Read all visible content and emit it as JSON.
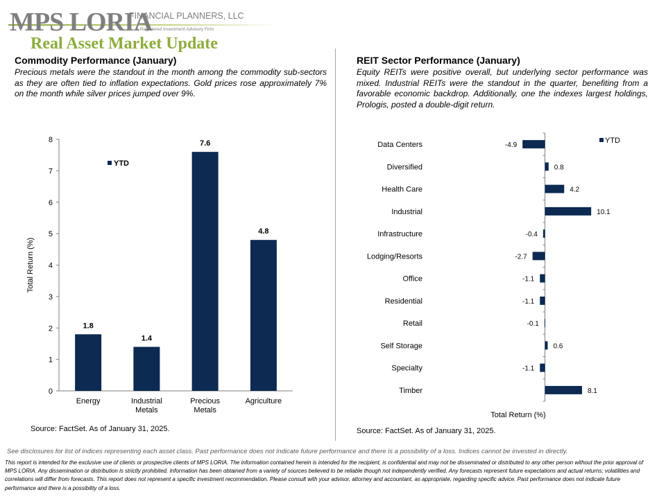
{
  "logo": {
    "wordmark": "MPS LORIA",
    "subtitle": "FINANCIAL PLANNERS, LLC",
    "tagline": "A Registered Investment Advisory Firm"
  },
  "page_title": "Real Asset Market Update",
  "left": {
    "title": "Commodity  Performance (January)",
    "description": "Precious metals were  the standout in the month among  the commodity sub-sectors as they are often tied to inflation expectations. Gold prices rose approximately  7% on the month while silver prices jumped over 9%.",
    "source": "Source: FactSet. As of January 31, 2025."
  },
  "right": {
    "title": "REIT Sector Performance (January)",
    "description": "Equity REITs were  positive overall,  but underlying  sector performance was mixed. Industrial REITs were  the standout in the quarter,  benefiting from a favorable economic backdrop. Additionally,  one  the indexes largest holdings,  Prologis, posted a double-digit return.",
    "source": "Source: FactSet. As of January 31, 2025."
  },
  "disclaimer": "See disclosures for list of indices representing each asset class. Past performance does not indicate future performance and there is a possibility of a loss. Indices cannot be invested in directly.",
  "footer": "This report is intended for the exclusive use of clients or prospective clients of MPS LORIA. The information contained herein is intended for the recipient, is confidential and may not be disseminated or distributed to any other person without the prior approval of MPS LORIA. Any dissemination or distribution is strictly prohibited. Information has been obtained from a variety of sources believed to be reliable though not independently verified. Any forecasts represent future expectations and actual returns; volatilities and correlations will differ from forecasts. This report does not represent a specific investment recommendation. Please consult with your advisor, attorney and accountant, as appropriate, regarding specific advice. Past performance does not indicate future performance and there is a possibility of a loss.",
  "colors": {
    "bar": "#0c2a52",
    "title_green": "#8dac3c",
    "divider": "#a6a6a6"
  },
  "chart_data": [
    {
      "type": "bar",
      "orientation": "vertical",
      "categories": [
        "Energy",
        "Industrial Metals",
        "Precious Metals",
        "Agriculture"
      ],
      "category_lines": [
        [
          "Energy"
        ],
        [
          "Industrial",
          "Metals"
        ],
        [
          "Precious",
          "Metals"
        ],
        [
          "Agriculture"
        ]
      ],
      "series": [
        {
          "name": "YTD",
          "values": [
            1.8,
            1.4,
            7.6,
            4.8
          ]
        }
      ],
      "data_labels": [
        "1.8",
        "1.4",
        "7.6",
        "4.8"
      ],
      "ylabel": "Total Return (%)",
      "xlabel": "",
      "ylim": [
        0,
        8
      ],
      "yticks": [
        0,
        1,
        2,
        3,
        4,
        5,
        6,
        7,
        8
      ],
      "legend": "top-left",
      "grid": false
    },
    {
      "type": "bar",
      "orientation": "horizontal",
      "categories": [
        "Data Centers",
        "Diversified",
        "Health Care",
        "Industrial",
        "Infrastructure",
        "Lodging/Resorts",
        "Office",
        "Residential",
        "Retail",
        "Self Storage",
        "Specialty",
        "Timber"
      ],
      "series": [
        {
          "name": "YTD",
          "values": [
            -4.9,
            0.8,
            4.2,
            10.1,
            -0.4,
            -2.7,
            -1.1,
            -1.1,
            -0.1,
            0.6,
            -1.1,
            8.1
          ]
        }
      ],
      "data_labels": [
        "-4.9",
        "0.8",
        "4.2",
        "10.1",
        "-0.4",
        "-2.7",
        "-1.1",
        "-1.1",
        "-0.1",
        "0.6",
        "-1.1",
        "8.1"
      ],
      "xlabel": "Total Return (%)",
      "ylabel": "",
      "xlim": [
        -5,
        10.5
      ],
      "legend": "top-right",
      "grid": false
    }
  ]
}
